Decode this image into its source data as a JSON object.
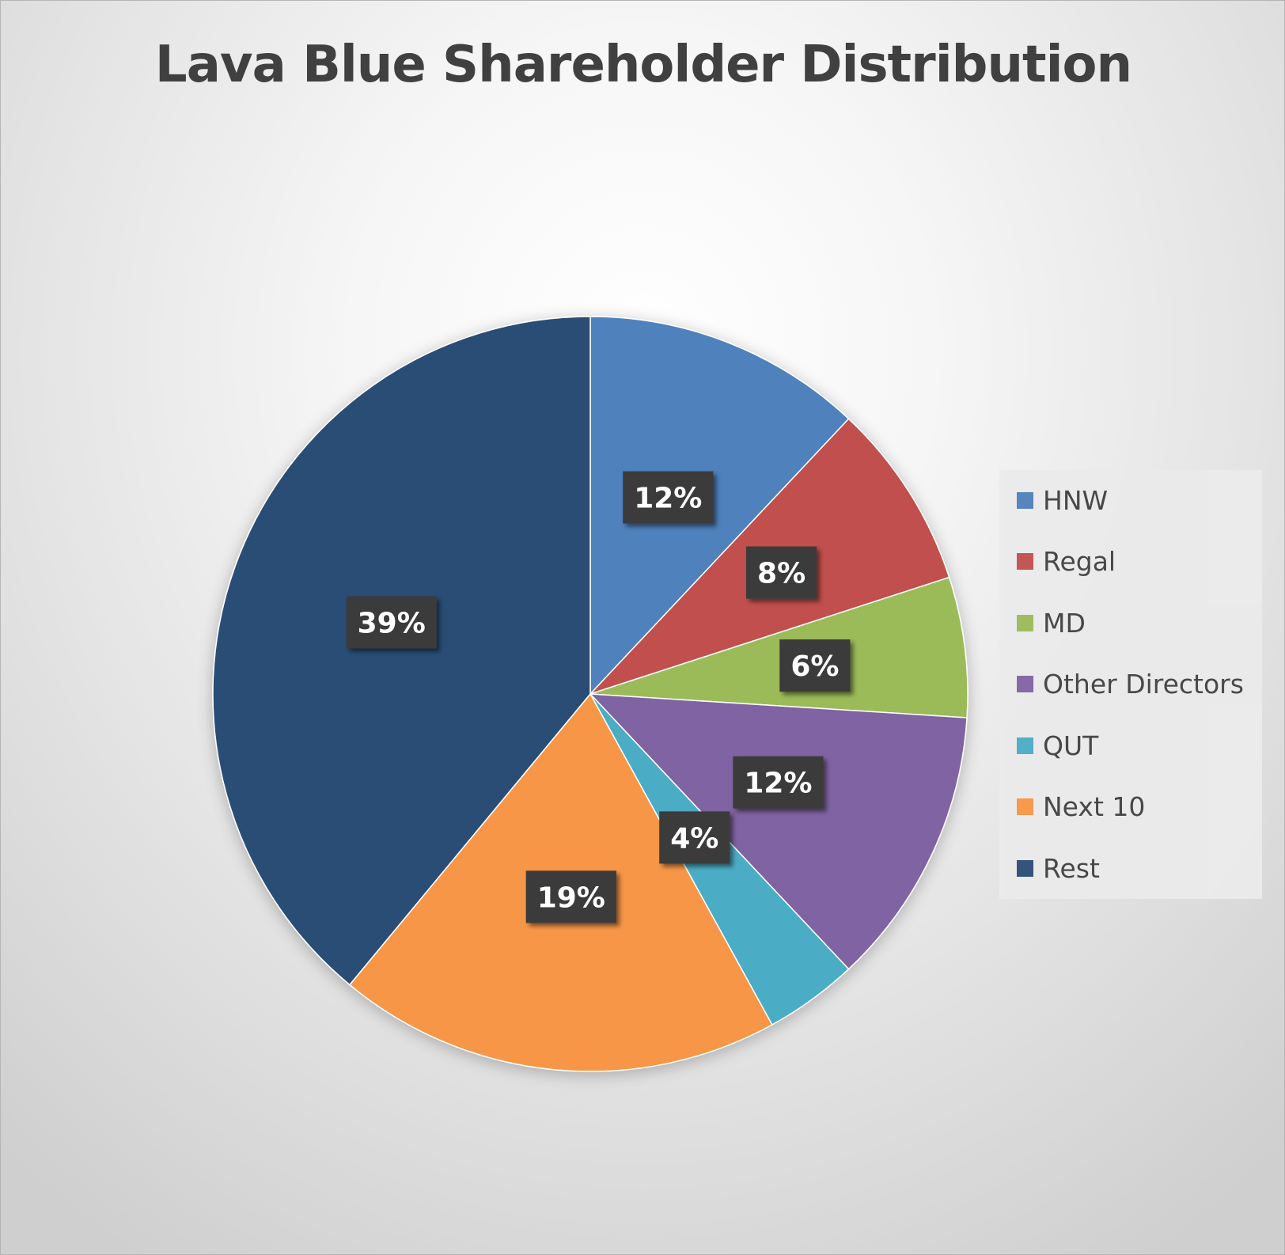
{
  "chart_data": {
    "type": "pie",
    "title": "Lava Blue Shareholder Distribution",
    "categories": [
      "HNW",
      "Regal",
      "MD",
      "Other Directors",
      "QUT",
      "Next 10",
      "Rest"
    ],
    "values": [
      12,
      8,
      6,
      12,
      4,
      19,
      39
    ],
    "data_labels": [
      "12%",
      "8%",
      "6%",
      "12%",
      "4%",
      "19%",
      "39%"
    ],
    "colors": [
      "#4F81BD",
      "#C0504D",
      "#9BBB59",
      "#8064A2",
      "#4BACC6",
      "#F79646",
      "#2C4D75"
    ],
    "label_style": {
      "background": "#3a3a3a",
      "text_color": "#ffffff"
    },
    "legend_placement": "right",
    "start_angle": "12 o'clock",
    "direction": "clockwise"
  }
}
